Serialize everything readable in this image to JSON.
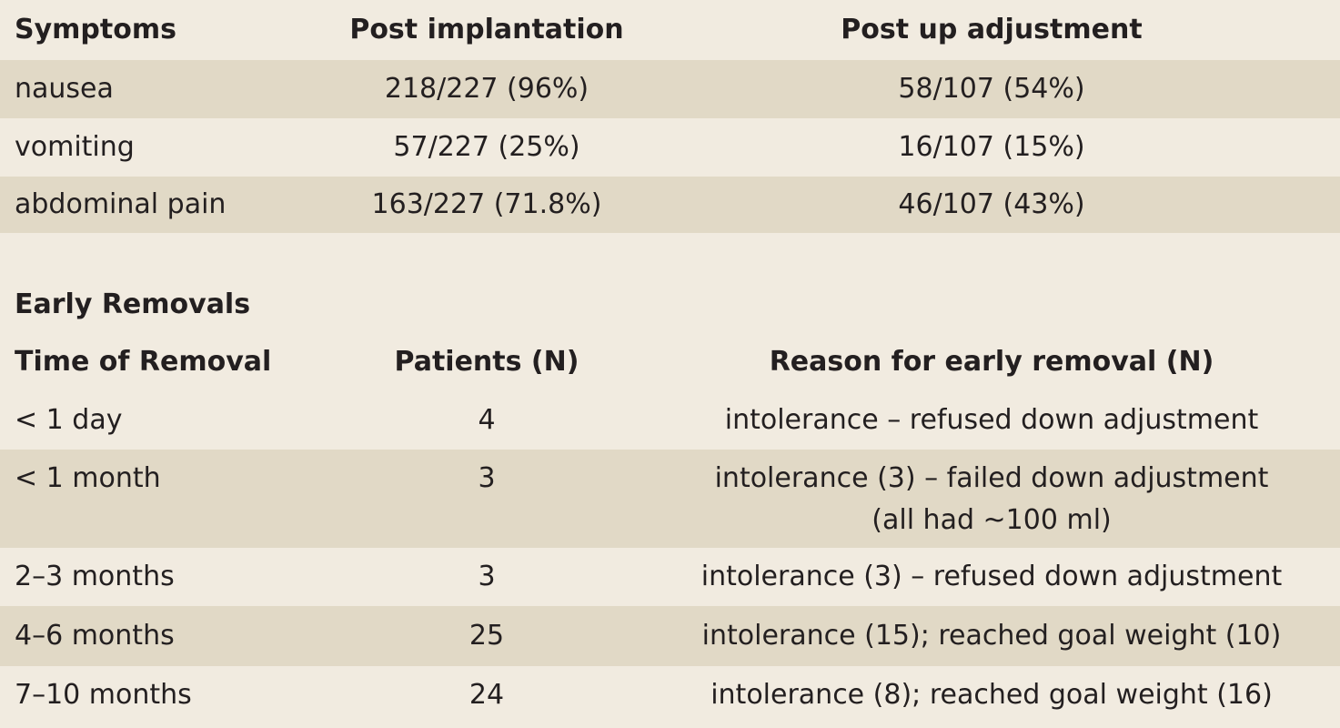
{
  "symptoms_table": {
    "headers": [
      "Symptoms",
      "Post implantation",
      "Post up adjustment"
    ],
    "rows": [
      [
        "nausea",
        "218/227 (96%)",
        "58/107 (54%)"
      ],
      [
        "vomiting",
        "57/227 (25%)",
        "16/107 (15%)"
      ],
      [
        "abdominal pain",
        "163/227 (71.8%)",
        "46/107 (43%)"
      ]
    ]
  },
  "removals_table": {
    "section_title": "Early Removals",
    "headers": [
      "Time of Removal",
      "Patients (N)",
      "Reason for early removal (N)"
    ],
    "rows": [
      {
        "time": "< 1 day",
        "patients": "4",
        "reason": [
          "intolerance – refused down adjustment"
        ]
      },
      {
        "time": "< 1 month",
        "patients": "3",
        "reason": [
          "intolerance (3) – failed down adjustment",
          "(all had ~100 ml)"
        ]
      },
      {
        "time": "2–3 months",
        "patients": "3",
        "reason": [
          "intolerance (3) – refused down adjustment"
        ]
      },
      {
        "time": "4–6 months",
        "patients": "25",
        "reason": [
          "intolerance (15); reached goal weight (10)"
        ]
      },
      {
        "time": "7–10 months",
        "patients": "24",
        "reason": [
          "intolerance (8); reached goal weight (16)"
        ]
      }
    ]
  }
}
